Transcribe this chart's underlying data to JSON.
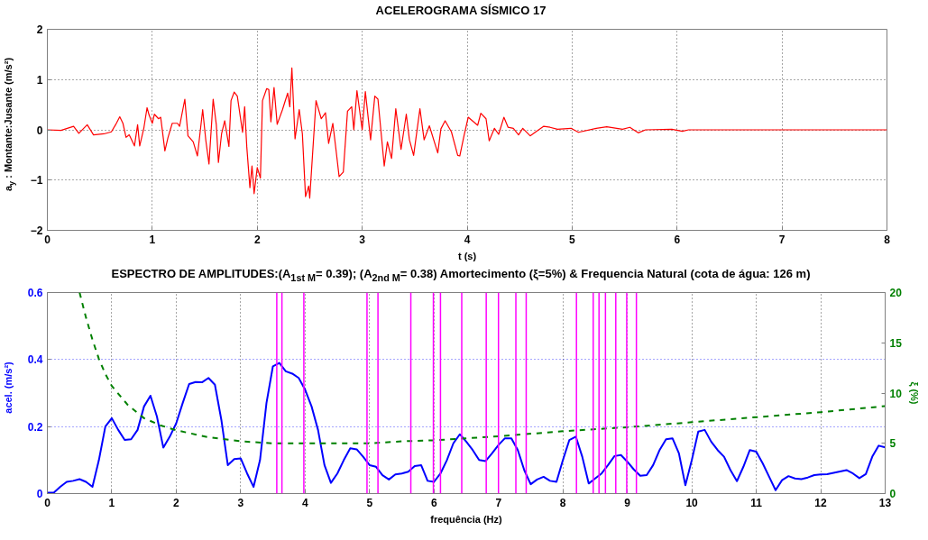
{
  "chart_data": [
    {
      "type": "line",
      "title": "ACELEROGRAMA SÍSMICO 17",
      "xlabel": "t (s)",
      "ylabel": "a$_{y}$ : Montante:Jusante (m/s²)",
      "xlim": [
        0,
        8
      ],
      "ylim": [
        -2,
        2
      ],
      "xticks": [
        0,
        1,
        2,
        3,
        4,
        5,
        6,
        7,
        8
      ],
      "yticks": [
        -2,
        -1,
        0,
        1,
        2
      ],
      "grid": true,
      "series": [
        {
          "color": "#ff0000",
          "x": [
            0,
            0.13,
            0.25,
            0.3,
            0.38,
            0.44,
            0.54,
            0.61,
            0.65,
            0.69,
            0.72,
            0.75,
            0.78,
            0.83,
            0.86,
            0.88,
            0.92,
            0.95,
            0.97,
            1.0,
            1.02,
            1.06,
            1.08,
            1.12,
            1.15,
            1.19,
            1.24,
            1.26,
            1.31,
            1.34,
            1.39,
            1.43,
            1.48,
            1.51,
            1.54,
            1.58,
            1.61,
            1.63,
            1.66,
            1.69,
            1.73,
            1.75,
            1.78,
            1.81,
            1.86,
            1.88,
            1.9,
            1.93,
            1.95,
            1.97,
            2.0,
            2.03,
            2.05,
            2.09,
            2.11,
            2.13,
            2.16,
            2.19,
            2.24,
            2.29,
            2.31,
            2.33,
            2.36,
            2.4,
            2.43,
            2.46,
            2.49,
            2.5,
            2.56,
            2.61,
            2.65,
            2.68,
            2.72,
            2.75,
            2.78,
            2.82,
            2.86,
            2.9,
            2.92,
            2.95,
            3.0,
            3.03,
            3.08,
            3.12,
            3.15,
            3.21,
            3.24,
            3.28,
            3.32,
            3.37,
            3.42,
            3.45,
            3.49,
            3.55,
            3.59,
            3.64,
            3.72,
            3.75,
            3.79,
            3.85,
            3.91,
            3.93,
            3.97,
            4.01,
            4.1,
            4.13,
            4.18,
            4.21,
            4.26,
            4.3,
            4.35,
            4.39,
            4.44,
            4.49,
            4.53,
            4.6,
            4.66,
            4.73,
            4.79,
            4.86,
            4.99,
            5.06,
            5.23,
            5.33,
            5.48,
            5.55,
            5.63,
            5.7,
            5.95,
            6.05,
            6.11,
            8.0
          ],
          "values": [
            0,
            -0.01,
            0.07,
            -0.07,
            0.1,
            -0.1,
            -0.08,
            -0.04,
            0.1,
            0.26,
            0.13,
            -0.15,
            -0.1,
            -0.32,
            0.1,
            -0.32,
            0.04,
            0.44,
            0.29,
            0.13,
            0.31,
            0.22,
            0.25,
            -0.42,
            -0.15,
            0.13,
            0.13,
            0.07,
            0.61,
            -0.12,
            -0.24,
            -0.52,
            0.4,
            -0.21,
            -0.68,
            0.61,
            0.1,
            -0.65,
            -0.08,
            0.18,
            -0.33,
            0.58,
            0.75,
            0.67,
            -0.05,
            0.46,
            -0.33,
            -1.15,
            -0.72,
            -1.27,
            -0.75,
            -0.96,
            0.58,
            0.82,
            0.8,
            0.16,
            0.84,
            0.11,
            0.4,
            0.73,
            0.46,
            1.23,
            -0.18,
            0.4,
            -0.08,
            -1.33,
            -1.12,
            -1.36,
            0.58,
            0.22,
            0.34,
            -0.27,
            0.13,
            -0.39,
            -0.93,
            -0.84,
            0.37,
            0.46,
            0.0,
            0.78,
            0.0,
            0.76,
            -0.2,
            0.67,
            0.61,
            -0.72,
            -0.24,
            -0.57,
            0.42,
            -0.39,
            0.31,
            -0.2,
            -0.51,
            0.42,
            -0.2,
            0.08,
            -0.46,
            0.02,
            0.18,
            -0.04,
            -0.51,
            -0.52,
            -0.12,
            0.25,
            0.09,
            0.33,
            0.22,
            -0.22,
            0.03,
            -0.09,
            0.25,
            0.05,
            0.03,
            -0.1,
            0.03,
            -0.12,
            -0.03,
            0.07,
            0.05,
            0.01,
            0.03,
            -0.05,
            0.03,
            0.06,
            0.01,
            0.05,
            -0.06,
            0.0,
            0.01,
            -0.03,
            0.0,
            0.0
          ]
        }
      ]
    },
    {
      "type": "line",
      "title": "ESPECTRO DE AMPLITUDES:(A$_{1st M}$= 0.39); (A$_{2nd M}$= 0.38)  Amortecimento (ξ=5%) & Frequencia Natural (cota de água: 126 m)",
      "xlabel": "frequência (Hz)",
      "ylabel": "acel. (m/s²)",
      "y2label": "ξ (%)",
      "xlim": [
        0,
        13
      ],
      "ylim": [
        0,
        0.6
      ],
      "y2lim": [
        0,
        20
      ],
      "xticks": [
        0,
        1,
        2,
        3,
        4,
        5,
        6,
        7,
        8,
        9,
        10,
        11,
        12,
        13
      ],
      "yticks": [
        0,
        0.2,
        0.4,
        0.6
      ],
      "y2ticks": [
        0,
        5,
        10,
        15,
        20
      ],
      "grid": true,
      "series": [
        {
          "color": "#0000ff",
          "x": [
            0,
            0.1,
            0.2,
            0.3,
            0.4,
            0.5,
            0.6,
            0.7,
            0.8,
            0.9,
            1,
            1.1,
            1.2,
            1.3,
            1.4,
            1.5,
            1.6,
            1.7,
            1.8,
            1.9,
            2,
            2.1,
            2.2,
            2.3,
            2.4,
            2.5,
            2.6,
            2.7,
            2.8,
            2.9,
            3,
            3.1,
            3.2,
            3.3,
            3.4,
            3.5,
            3.6,
            3.7,
            3.8,
            3.9,
            4,
            4.1,
            4.2,
            4.3,
            4.4,
            4.5,
            4.6,
            4.7,
            4.8,
            4.9,
            5,
            5.1,
            5.2,
            5.3,
            5.4,
            5.5,
            5.6,
            5.7,
            5.8,
            5.9,
            6,
            6.1,
            6.2,
            6.3,
            6.4,
            6.5,
            6.6,
            6.7,
            6.8,
            6.9,
            7,
            7.1,
            7.2,
            7.3,
            7.4,
            7.5,
            7.6,
            7.7,
            7.8,
            7.9,
            8,
            8.1,
            8.2,
            8.3,
            8.4,
            8.5,
            8.6,
            8.7,
            8.8,
            8.9,
            9,
            9.1,
            9.2,
            9.3,
            9.4,
            9.5,
            9.6,
            9.7,
            9.8,
            9.9,
            10,
            10.1,
            10.2,
            10.3,
            10.4,
            10.5,
            10.6,
            10.7,
            10.8,
            10.9,
            11,
            11.1,
            11.2,
            11.3,
            11.4,
            11.5,
            11.6,
            11.7,
            11.8,
            11.9,
            12,
            12.1,
            12.2,
            12.3,
            12.4,
            12.5,
            12.6,
            12.7,
            12.8,
            12.9,
            13
          ],
          "values": [
            0.003,
            0.003,
            0.02,
            0.035,
            0.038,
            0.043,
            0.035,
            0.02,
            0.1,
            0.2,
            0.225,
            0.19,
            0.16,
            0.162,
            0.19,
            0.26,
            0.292,
            0.23,
            0.137,
            0.17,
            0.21,
            0.27,
            0.327,
            0.333,
            0.332,
            0.345,
            0.325,
            0.22,
            0.085,
            0.103,
            0.105,
            0.06,
            0.02,
            0.1,
            0.27,
            0.38,
            0.39,
            0.365,
            0.358,
            0.345,
            0.31,
            0.26,
            0.19,
            0.085,
            0.032,
            0.06,
            0.1,
            0.135,
            0.132,
            0.11,
            0.085,
            0.08,
            0.055,
            0.042,
            0.057,
            0.06,
            0.065,
            0.082,
            0.085,
            0.038,
            0.035,
            0.06,
            0.1,
            0.15,
            0.177,
            0.155,
            0.13,
            0.1,
            0.097,
            0.12,
            0.145,
            0.165,
            0.165,
            0.13,
            0.07,
            0.028,
            0.042,
            0.05,
            0.038,
            0.035,
            0.1,
            0.16,
            0.17,
            0.11,
            0.03,
            0.045,
            0.06,
            0.085,
            0.112,
            0.115,
            0.095,
            0.072,
            0.053,
            0.055,
            0.085,
            0.13,
            0.162,
            0.165,
            0.12,
            0.025,
            0.1,
            0.185,
            0.19,
            0.155,
            0.13,
            0.11,
            0.07,
            0.037,
            0.08,
            0.13,
            0.125,
            0.09,
            0.05,
            0.01,
            0.04,
            0.052,
            0.045,
            0.043,
            0.048,
            0.055,
            0.057,
            0.058,
            0.062,
            0.066,
            0.07,
            0.06,
            0.046,
            0.058,
            0.11,
            0.143,
            0.138
          ]
        },
        {
          "color": "#008000",
          "axis": "y2",
          "line_style": "dashed",
          "x": [
            0.5,
            0.6,
            0.7,
            0.8,
            0.9,
            1.0,
            1.25,
            1.5,
            1.75,
            2,
            2.5,
            3,
            3.5,
            4,
            4.5,
            5,
            5.5,
            6,
            6.5,
            7,
            8,
            9,
            10,
            11,
            12,
            13
          ],
          "values": [
            20,
            17.5,
            15.3,
            13.4,
            11.9,
            10.7,
            8.8,
            7.5,
            6.8,
            6.3,
            5.6,
            5.2,
            5.0,
            5.0,
            5.0,
            5.0,
            5.2,
            5.3,
            5.5,
            5.7,
            6.2,
            6.6,
            7.1,
            7.6,
            8.1,
            8.7
          ]
        }
      ],
      "ref_lines": [
        {
          "axis": "x",
          "value": 3.56,
          "color": "#ff00ff"
        },
        {
          "axis": "x",
          "value": 3.64,
          "color": "#ff00ff"
        },
        {
          "axis": "x",
          "value": 3.98,
          "color": "#ff00ff"
        },
        {
          "axis": "x",
          "value": 4.96,
          "color": "#ff00ff"
        },
        {
          "axis": "x",
          "value": 5.13,
          "color": "#ff00ff"
        },
        {
          "axis": "x",
          "value": 5.64,
          "color": "#ff00ff"
        },
        {
          "axis": "x",
          "value": 5.99,
          "color": "#ff00ff"
        },
        {
          "axis": "x",
          "value": 6.1,
          "color": "#ff00ff"
        },
        {
          "axis": "x",
          "value": 6.43,
          "color": "#ff00ff"
        },
        {
          "axis": "x",
          "value": 6.81,
          "color": "#ff00ff"
        },
        {
          "axis": "x",
          "value": 7.0,
          "color": "#ff00ff"
        },
        {
          "axis": "x",
          "value": 7.27,
          "color": "#ff00ff"
        },
        {
          "axis": "x",
          "value": 7.43,
          "color": "#ff00ff"
        },
        {
          "axis": "x",
          "value": 8.21,
          "color": "#ff00ff"
        },
        {
          "axis": "x",
          "value": 8.47,
          "color": "#ff00ff"
        },
        {
          "axis": "x",
          "value": 8.56,
          "color": "#ff00ff"
        },
        {
          "axis": "x",
          "value": 8.66,
          "color": "#ff00ff"
        },
        {
          "axis": "x",
          "value": 8.82,
          "color": "#ff00ff"
        },
        {
          "axis": "x",
          "value": 8.99,
          "color": "#ff00ff"
        },
        {
          "axis": "x",
          "value": 9.14,
          "color": "#ff00ff"
        }
      ]
    }
  ]
}
